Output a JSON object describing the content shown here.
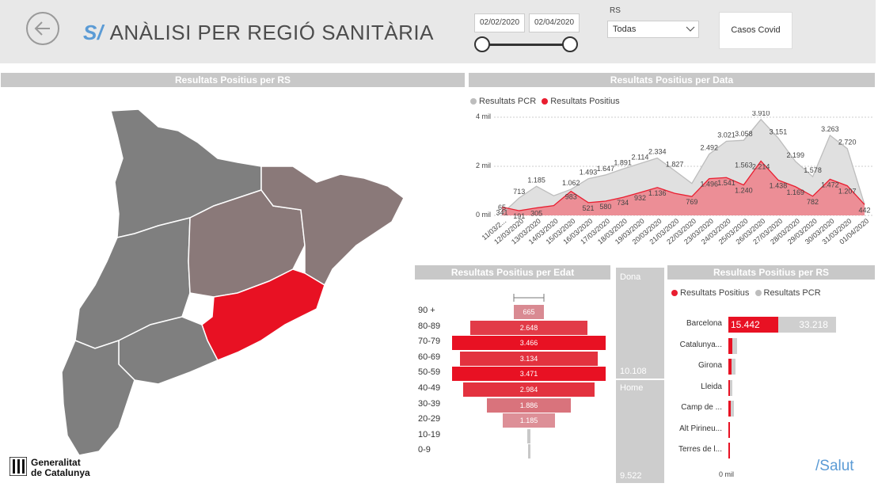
{
  "header": {
    "title_prefix": "S/",
    "title": "ANÀLISI PER REGIÓ SANITÀRIA",
    "date_start": "02/02/2020",
    "date_end": "02/04/2020",
    "rs_label": "RS",
    "rs_selected": "Todas",
    "casos_button": "Casos Covid"
  },
  "map_panel": {
    "title": "Resultats Positius per RS"
  },
  "date_chart": {
    "title": "Resultats Positius per Data",
    "legend": [
      "Resultats PCR",
      "Resultats Positius"
    ],
    "y_ticks": [
      "0 mil",
      "2 mil",
      "4 mil"
    ],
    "colors": {
      "pcr": "#d2d2d2",
      "pos": "#e91e30"
    }
  },
  "age_panel": {
    "title": "Resultats Positius per Edat"
  },
  "gender_panel": {
    "dona_label": "Dona",
    "dona_value": "10.108",
    "home_label": "Home",
    "home_value": "9.522"
  },
  "rs_panel": {
    "title": "Resultats Positius per RS",
    "legend": [
      "Resultats Positius",
      "Resultats PCR"
    ],
    "axis_label": "0 mil"
  },
  "footer": {
    "logo_line1": "Generalitat",
    "logo_line2": "de Catalunya",
    "salut": "/Salut"
  },
  "chart_data": [
    {
      "type": "area",
      "title": "Resultats Positius per Data",
      "categories": [
        "11/03/2...",
        "12/03/2020",
        "13/03/2020",
        "14/03/2020",
        "15/03/2020",
        "16/03/2020",
        "17/03/2020",
        "18/03/2020",
        "19/03/2020",
        "20/03/2020",
        "21/03/2020",
        "22/03/2020",
        "23/03/2020",
        "24/03/2020",
        "25/03/2020",
        "26/03/2020",
        "27/03/2020",
        "28/03/2020",
        "29/03/2020",
        "30/03/2020",
        "31/03/2020",
        "01/04/2020"
      ],
      "series": [
        {
          "name": "Resultats PCR",
          "values": [
            65,
            713,
            1185,
            800,
            1062,
            1493,
            1647,
            1891,
            2114,
            2334,
            1827,
            1300,
            2492,
            3021,
            3058,
            3910,
            3151,
            2199,
            1578,
            3263,
            2720,
            442
          ],
          "labels": [
            "65",
            "713",
            "1.185",
            "",
            "1.062",
            "1.493",
            "1.647",
            "1.891",
            "2.114",
            "2.334",
            "1.827",
            "",
            "2.492",
            "3.021",
            "3.058",
            "3.910",
            "3.151",
            "2.199",
            "1.578",
            "3.263",
            "2.720",
            ""
          ]
        },
        {
          "name": "Resultats Positius",
          "values": [
            341,
            191,
            305,
            400,
            983,
            521,
            580,
            734,
            932,
            1136,
            900,
            769,
            1496,
            1541,
            1240,
            2214,
            1438,
            1169,
            782,
            1472,
            1207,
            442
          ],
          "labels": [
            "341",
            "191",
            "305",
            "",
            "983",
            "521",
            "580",
            "734",
            "932",
            "1.136",
            "",
            "769",
            "1.496",
            "1.541",
            "1.240",
            "2.214",
            "1.438",
            "1.169",
            "782",
            "1.472",
            "1.207",
            "442"
          ]
        }
      ],
      "extra_labels": [
        "1.563"
      ],
      "ylim": [
        0,
        4000
      ]
    },
    {
      "type": "bar",
      "title": "Resultats Positius per Edat",
      "categories": [
        "90 +",
        "80-89",
        "70-79",
        "60-69",
        "50-59",
        "40-49",
        "30-39",
        "20-29",
        "10-19",
        "0-9"
      ],
      "values": [
        665,
        2648,
        3466,
        3134,
        3471,
        2984,
        1886,
        1185,
        60,
        20
      ],
      "labels": [
        "665",
        "2.648",
        "3.466",
        "3.134",
        "3.471",
        "2.984",
        "1.886",
        "1.185",
        "",
        ""
      ]
    },
    {
      "type": "bar",
      "title": "Resultats Positius per RS",
      "categories": [
        "Barcelona",
        "Catalunya...",
        "Girona",
        "Lleida",
        "Camp de ...",
        "Alt Pirineu...",
        "Terres de l..."
      ],
      "series": [
        {
          "name": "Resultats Positius",
          "values": [
            15442,
            1100,
            900,
            500,
            700,
            100,
            150
          ]
        },
        {
          "name": "Resultats PCR",
          "values": [
            33218,
            2600,
            2200,
            1300,
            1600,
            300,
            400
          ]
        }
      ],
      "labels": {
        "positius": "15.442",
        "pcr": "33.218"
      }
    }
  ]
}
